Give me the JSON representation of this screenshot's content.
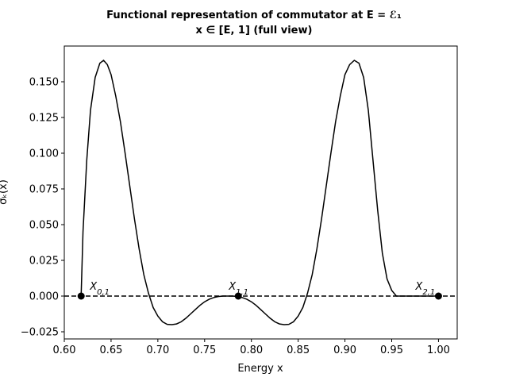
{
  "chart_data": {
    "type": "line",
    "title_line1": "Functional representation of commutator at E = ℰ₁",
    "title_line2": "x ∈ [E, 1] (full view)",
    "xlabel": "Energy x",
    "ylabel": "σₖ(x)",
    "xlim": [
      0.6,
      1.02
    ],
    "ylim": [
      -0.03,
      0.175
    ],
    "xticks": [
      "0.60",
      "0.65",
      "0.70",
      "0.75",
      "0.80",
      "0.85",
      "0.90",
      "0.95",
      "1.00"
    ],
    "xtick_values": [
      0.6,
      0.65,
      0.7,
      0.75,
      0.8,
      0.85,
      0.9,
      0.95,
      1.0
    ],
    "yticks": [
      "−0.025",
      "0.000",
      "0.025",
      "0.050",
      "0.075",
      "0.100",
      "0.125",
      "0.150"
    ],
    "ytick_values": [
      -0.025,
      0.0,
      0.025,
      0.05,
      0.075,
      0.1,
      0.125,
      0.15
    ],
    "grid": false,
    "legend": "none",
    "series": [
      {
        "x": [
          0.618,
          0.62,
          0.624,
          0.628,
          0.633,
          0.638,
          0.642,
          0.646,
          0.65,
          0.655,
          0.66,
          0.665,
          0.67,
          0.675,
          0.68,
          0.685,
          0.69,
          0.695,
          0.7,
          0.705,
          0.71,
          0.715,
          0.72,
          0.725,
          0.73,
          0.735,
          0.74,
          0.745,
          0.75,
          0.755,
          0.76,
          0.765,
          0.77,
          0.775,
          0.78,
          0.785,
          0.79,
          0.795,
          0.8,
          0.805,
          0.81,
          0.815,
          0.82,
          0.825,
          0.83,
          0.835,
          0.84,
          0.845,
          0.85,
          0.855,
          0.86,
          0.865,
          0.87,
          0.875,
          0.88,
          0.885,
          0.89,
          0.895,
          0.9,
          0.905,
          0.91,
          0.915,
          0.92,
          0.925,
          0.93,
          0.935,
          0.94,
          0.945,
          0.95,
          0.955,
          0.96,
          0.965,
          0.97,
          0.975,
          0.98,
          0.985,
          0.99,
          0.994,
          0.997,
          1.0
        ],
        "values": [
          0.0,
          0.045,
          0.095,
          0.13,
          0.153,
          0.163,
          0.165,
          0.162,
          0.155,
          0.14,
          0.122,
          0.1,
          0.077,
          0.054,
          0.033,
          0.015,
          0.002,
          -0.008,
          -0.014,
          -0.018,
          -0.0198,
          -0.02,
          -0.0195,
          -0.018,
          -0.0155,
          -0.0125,
          -0.0095,
          -0.0065,
          -0.004,
          -0.0022,
          -0.001,
          -0.0003,
          0.0,
          0.0,
          0.0,
          -0.0003,
          -0.001,
          -0.0022,
          -0.004,
          -0.0065,
          -0.0095,
          -0.0125,
          -0.0155,
          -0.018,
          -0.0195,
          -0.02,
          -0.0198,
          -0.018,
          -0.014,
          -0.008,
          0.002,
          0.015,
          0.033,
          0.054,
          0.077,
          0.1,
          0.122,
          0.14,
          0.155,
          0.162,
          0.165,
          0.163,
          0.153,
          0.13,
          0.095,
          0.06,
          0.03,
          0.012,
          0.004,
          0.0,
          0.0,
          0.0,
          0.0,
          0.0,
          0.0,
          0.0,
          0.0,
          0.0,
          0.0,
          0.0
        ],
        "color": "#000000"
      }
    ],
    "reference_line": {
      "y": 0.0,
      "style": "dashed",
      "color": "#000000"
    },
    "points": [
      {
        "label": "X0,1",
        "x": 0.618,
        "y": 0.0
      },
      {
        "label": "X1,1",
        "x": 0.786,
        "y": 0.0
      },
      {
        "label": "X2,1",
        "x": 1.0,
        "y": 0.0
      }
    ]
  }
}
